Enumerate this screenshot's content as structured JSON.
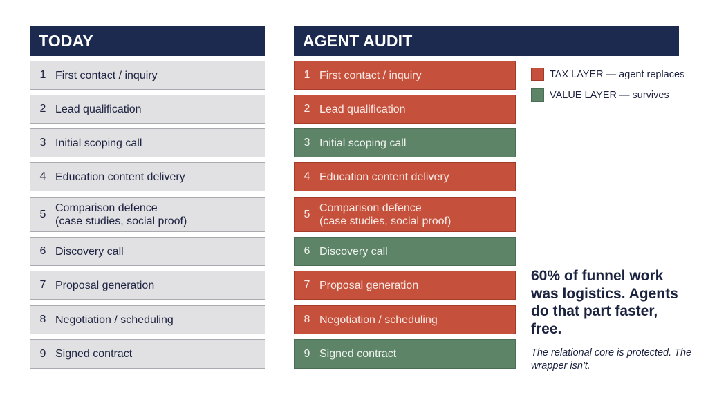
{
  "today": {
    "title": "TODAY",
    "steps": [
      {
        "num": "1",
        "label": "First contact / inquiry"
      },
      {
        "num": "2",
        "label": "Lead qualification"
      },
      {
        "num": "3",
        "label": "Initial scoping call"
      },
      {
        "num": "4",
        "label": "Education content delivery"
      },
      {
        "num": "5",
        "label": "Comparison defence\n(case studies, social proof)"
      },
      {
        "num": "6",
        "label": "Discovery call"
      },
      {
        "num": "7",
        "label": "Proposal generation"
      },
      {
        "num": "8",
        "label": "Negotiation / scheduling"
      },
      {
        "num": "9",
        "label": "Signed contract"
      }
    ]
  },
  "audit": {
    "title": "AGENT AUDIT",
    "steps": [
      {
        "num": "1",
        "label": "First contact / inquiry",
        "layer": "tax"
      },
      {
        "num": "2",
        "label": "Lead qualification",
        "layer": "tax"
      },
      {
        "num": "3",
        "label": "Initial scoping call",
        "layer": "value"
      },
      {
        "num": "4",
        "label": "Education content delivery",
        "layer": "tax"
      },
      {
        "num": "5",
        "label": "Comparison defence\n(case studies, social proof)",
        "layer": "tax"
      },
      {
        "num": "6",
        "label": "Discovery call",
        "layer": "value"
      },
      {
        "num": "7",
        "label": "Proposal generation",
        "layer": "tax"
      },
      {
        "num": "8",
        "label": "Negotiation / scheduling",
        "layer": "tax"
      },
      {
        "num": "9",
        "label": "Signed contract",
        "layer": "value"
      }
    ]
  },
  "legend": {
    "tax": {
      "label": "TAX LAYER — agent replaces",
      "color": "#c5503c"
    },
    "value": {
      "label": "VALUE LAYER — survives",
      "color": "#5e8468"
    }
  },
  "callout": "60% of funnel work was logistics. Agents do that part faster, free.",
  "tagline": "The relational core is protected. The wrapper isn't.",
  "colors": {
    "header": "#1b2a4e",
    "today_row": "#e1e1e3",
    "tax": "#c5503c",
    "value": "#5e8468"
  }
}
